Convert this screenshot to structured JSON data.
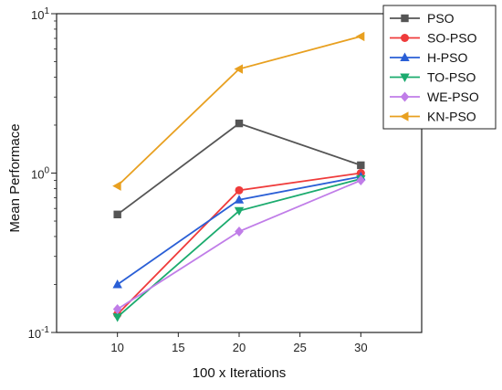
{
  "chart_data": {
    "type": "line",
    "xlabel": "100 x Iterations",
    "ylabel": "Mean Performace",
    "x": [
      10,
      20,
      30
    ],
    "xlim": [
      5,
      35
    ],
    "xticks": [
      10,
      15,
      20,
      25,
      30
    ],
    "ylim": [
      0.1,
      10
    ],
    "yscale": "log",
    "yticks": [
      {
        "value": 0.1,
        "base": "10",
        "exp": "-1"
      },
      {
        "value": 1,
        "base": "10",
        "exp": "0"
      },
      {
        "value": 10,
        "base": "10",
        "exp": "1"
      }
    ],
    "grid": false,
    "legend_position": "top-right",
    "series": [
      {
        "name": "PSO",
        "color": "#555555",
        "marker": "square",
        "values": [
          0.55,
          2.05,
          1.12
        ]
      },
      {
        "name": "SO-PSO",
        "color": "#ef3b3b",
        "marker": "circle",
        "values": [
          0.13,
          0.78,
          1.0
        ]
      },
      {
        "name": "H-PSO",
        "color": "#2a5fd6",
        "marker": "triangle-up",
        "values": [
          0.2,
          0.68,
          0.95
        ]
      },
      {
        "name": "TO-PSO",
        "color": "#1bab6e",
        "marker": "triangle-down",
        "values": [
          0.125,
          0.58,
          0.92
        ]
      },
      {
        "name": "WE-PSO",
        "color": "#c07de8",
        "marker": "diamond",
        "values": [
          0.14,
          0.43,
          0.9
        ]
      },
      {
        "name": "KN-PSO",
        "color": "#e8a020",
        "marker": "triangle-left",
        "values": [
          0.83,
          4.5,
          7.2
        ]
      }
    ]
  }
}
